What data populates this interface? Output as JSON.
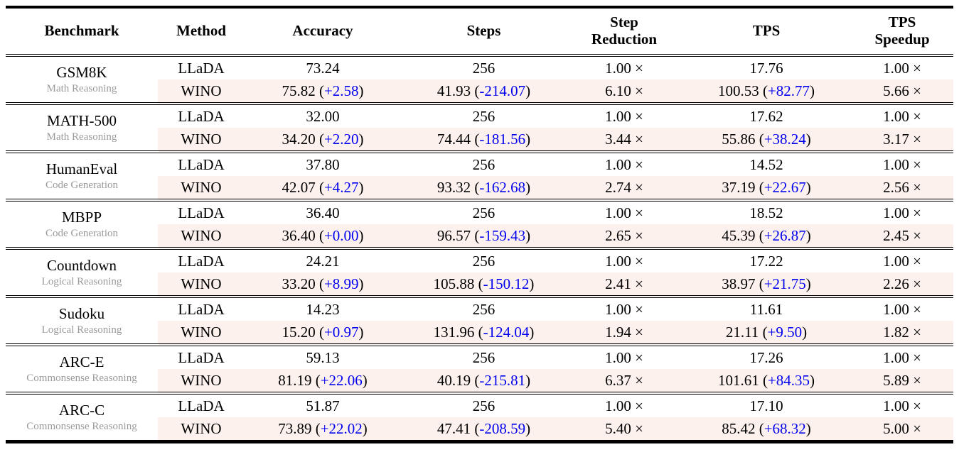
{
  "table": {
    "header": {
      "benchmark": "Benchmark",
      "method": "Method",
      "accuracy": "Accuracy",
      "steps": "Steps",
      "step_reduction_line1": "Step",
      "step_reduction_line2": "Reduction",
      "tps": "TPS",
      "tps_speedup_line1": "TPS",
      "tps_speedup_line2": "Speedup"
    },
    "groups": [
      {
        "benchmark": "GSM8K",
        "category": "Math Reasoning",
        "rows": [
          {
            "method": "LLaDA",
            "accuracy": {
              "v": "73.24"
            },
            "steps": {
              "v": "256"
            },
            "step_reduction": "1.00 ×",
            "tps": {
              "v": "17.76"
            },
            "tps_speedup": "1.00 ×"
          },
          {
            "method": "WINO",
            "accuracy": {
              "v": "75.82",
              "d": "+2.58"
            },
            "steps": {
              "v": "41.93",
              "d": "-214.07"
            },
            "step_reduction": "6.10 ×",
            "tps": {
              "v": "100.53",
              "d": "+82.77"
            },
            "tps_speedup": "5.66 ×"
          }
        ]
      },
      {
        "benchmark": "MATH-500",
        "category": "Math Reasoning",
        "rows": [
          {
            "method": "LLaDA",
            "accuracy": {
              "v": "32.00"
            },
            "steps": {
              "v": "256"
            },
            "step_reduction": "1.00 ×",
            "tps": {
              "v": "17.62"
            },
            "tps_speedup": "1.00 ×"
          },
          {
            "method": "WINO",
            "accuracy": {
              "v": "34.20",
              "d": "+2.20"
            },
            "steps": {
              "v": "74.44",
              "d": "-181.56"
            },
            "step_reduction": "3.44 ×",
            "tps": {
              "v": "55.86",
              "d": "+38.24"
            },
            "tps_speedup": "3.17 ×"
          }
        ]
      },
      {
        "benchmark": "HumanEval",
        "category": "Code Generation",
        "rows": [
          {
            "method": "LLaDA",
            "accuracy": {
              "v": "37.80"
            },
            "steps": {
              "v": "256"
            },
            "step_reduction": "1.00 ×",
            "tps": {
              "v": "14.52"
            },
            "tps_speedup": "1.00 ×"
          },
          {
            "method": "WINO",
            "accuracy": {
              "v": "42.07",
              "d": "+4.27"
            },
            "steps": {
              "v": "93.32",
              "d": "-162.68"
            },
            "step_reduction": "2.74 ×",
            "tps": {
              "v": "37.19",
              "d": "+22.67"
            },
            "tps_speedup": "2.56 ×"
          }
        ]
      },
      {
        "benchmark": "MBPP",
        "category": "Code Generation",
        "rows": [
          {
            "method": "LLaDA",
            "accuracy": {
              "v": "36.40"
            },
            "steps": {
              "v": "256"
            },
            "step_reduction": "1.00 ×",
            "tps": {
              "v": "18.52"
            },
            "tps_speedup": "1.00 ×"
          },
          {
            "method": "WINO",
            "accuracy": {
              "v": "36.40",
              "d": "+0.00"
            },
            "steps": {
              "v": "96.57",
              "d": "-159.43"
            },
            "step_reduction": "2.65 ×",
            "tps": {
              "v": "45.39",
              "d": "+26.87"
            },
            "tps_speedup": "2.45 ×"
          }
        ]
      },
      {
        "benchmark": "Countdown",
        "category": "Logical Reasoning",
        "rows": [
          {
            "method": "LLaDA",
            "accuracy": {
              "v": "24.21"
            },
            "steps": {
              "v": "256"
            },
            "step_reduction": "1.00 ×",
            "tps": {
              "v": "17.22"
            },
            "tps_speedup": "1.00 ×"
          },
          {
            "method": "WINO",
            "accuracy": {
              "v": "33.20",
              "d": "+8.99"
            },
            "steps": {
              "v": "105.88",
              "d": "-150.12"
            },
            "step_reduction": "2.41 ×",
            "tps": {
              "v": "38.97",
              "d": "+21.75"
            },
            "tps_speedup": "2.26 ×"
          }
        ]
      },
      {
        "benchmark": "Sudoku",
        "category": "Logical Reasoning",
        "rows": [
          {
            "method": "LLaDA",
            "accuracy": {
              "v": "14.23"
            },
            "steps": {
              "v": "256"
            },
            "step_reduction": "1.00 ×",
            "tps": {
              "v": "11.61"
            },
            "tps_speedup": "1.00 ×"
          },
          {
            "method": "WINO",
            "accuracy": {
              "v": "15.20",
              "d": "+0.97"
            },
            "steps": {
              "v": "131.96",
              "d": "-124.04"
            },
            "step_reduction": "1.94 ×",
            "tps": {
              "v": "21.11",
              "d": "+9.50"
            },
            "tps_speedup": "1.82 ×"
          }
        ]
      },
      {
        "benchmark": "ARC-E",
        "category": "Commonsense Reasoning",
        "rows": [
          {
            "method": "LLaDA",
            "accuracy": {
              "v": "59.13"
            },
            "steps": {
              "v": "256"
            },
            "step_reduction": "1.00 ×",
            "tps": {
              "v": "17.26"
            },
            "tps_speedup": "1.00 ×"
          },
          {
            "method": "WINO",
            "accuracy": {
              "v": "81.19",
              "d": "+22.06"
            },
            "steps": {
              "v": "40.19",
              "d": "-215.81"
            },
            "step_reduction": "6.37 ×",
            "tps": {
              "v": "101.61",
              "d": "+84.35"
            },
            "tps_speedup": "5.89 ×"
          }
        ]
      },
      {
        "benchmark": "ARC-C",
        "category": "Commonsense Reasoning",
        "rows": [
          {
            "method": "LLaDA",
            "accuracy": {
              "v": "51.87"
            },
            "steps": {
              "v": "256"
            },
            "step_reduction": "1.00 ×",
            "tps": {
              "v": "17.10"
            },
            "tps_speedup": "1.00 ×"
          },
          {
            "method": "WINO",
            "accuracy": {
              "v": "73.89",
              "d": "+22.02"
            },
            "steps": {
              "v": "47.41",
              "d": "-208.59"
            },
            "step_reduction": "5.40 ×",
            "tps": {
              "v": "85.42",
              "d": "+68.32"
            },
            "tps_speedup": "5.00 ×"
          }
        ]
      }
    ]
  },
  "punct": {
    "open": " (",
    "close": ")"
  },
  "colors": {
    "highlight_bg": "#FDF1EE",
    "delta_blue": "#0000EE",
    "category_gray": "#9A9A9A",
    "text_black": "#000000"
  }
}
